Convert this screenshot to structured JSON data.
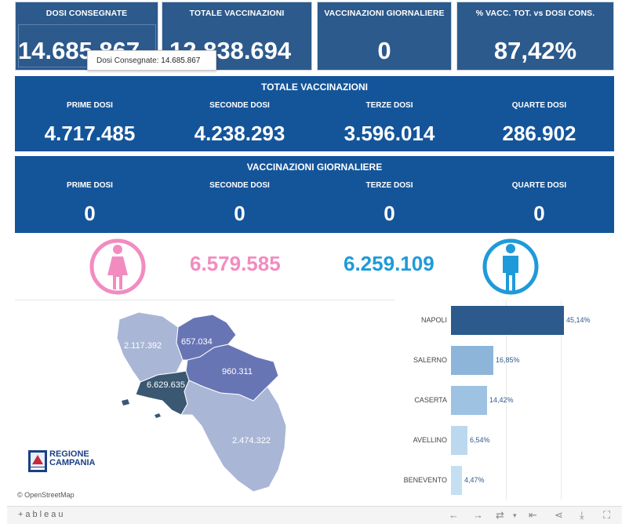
{
  "kpis": [
    {
      "label": "DOSI  CONSEGNATE",
      "value": "14.685.867"
    },
    {
      "label": "TOTALE VACCINAZIONI",
      "value": "12.838.694"
    },
    {
      "label": "VACCINAZIONI GIORNALIERE",
      "value": "0"
    },
    {
      "label": "% VACC. TOT. vs DOSI CONS.",
      "value": "87,42%"
    }
  ],
  "tooltip": {
    "label": "Dosi Consegnate:",
    "value": "14.685.867"
  },
  "totale": {
    "title": "TOTALE VACCINAZIONI",
    "cols": [
      {
        "label": "PRIME DOSI",
        "value": "4.717.485"
      },
      {
        "label": "SECONDE DOSI",
        "value": "4.238.293"
      },
      {
        "label": "TERZE DOSI",
        "value": "3.596.014"
      },
      {
        "label": "QUARTE DOSI",
        "value": "286.902"
      }
    ]
  },
  "giornaliere": {
    "title": "VACCINAZIONI GIORNALIERE",
    "cols": [
      {
        "label": "PRIME DOSI",
        "value": "0"
      },
      {
        "label": "SECONDE DOSI",
        "value": "0"
      },
      {
        "label": "TERZE DOSI",
        "value": "0"
      },
      {
        "label": "QUARTE DOSI",
        "value": "0"
      }
    ]
  },
  "gender": {
    "female": {
      "value": "6.579.585",
      "color": "#f28cc0",
      "icon": "female-person-icon"
    },
    "male": {
      "value": "6.259.109",
      "color": "#1f9ad9",
      "icon": "male-person-icon"
    }
  },
  "map": {
    "provinces": [
      {
        "name": "caserta",
        "value": "2.117.392"
      },
      {
        "name": "benevento",
        "value": "657.034"
      },
      {
        "name": "avellino",
        "value": "960.311"
      },
      {
        "name": "napoli",
        "value": "6.629.635"
      },
      {
        "name": "salerno",
        "value": "2.474.322"
      }
    ],
    "attribution": "© OpenStreetMap",
    "logo_line1": "REGIONE",
    "logo_line2": "CAMPANIA"
  },
  "chart_data": {
    "type": "bar",
    "orientation": "horizontal",
    "categories": [
      "NAPOLI",
      "SALERNO",
      "CASERTA",
      "AVELLINO",
      "BENEVENTO"
    ],
    "values": [
      45.14,
      16.85,
      14.42,
      6.54,
      4.47
    ],
    "labels": [
      "45,14%",
      "16,85%",
      "14,42%",
      "6,54%",
      "4,47%"
    ],
    "colors": [
      "#2c5a8c",
      "#8db5da",
      "#9ec2e1",
      "#bcd8ee",
      "#c5dff2"
    ],
    "xlim": [
      0,
      50
    ]
  },
  "toolbar": {
    "brand": "+ableau",
    "icons": [
      "undo-icon",
      "redo-icon",
      "revert-icon",
      "chevron-down-icon",
      "first-page-icon",
      "share-icon",
      "download-icon",
      "fullscreen-icon"
    ]
  }
}
